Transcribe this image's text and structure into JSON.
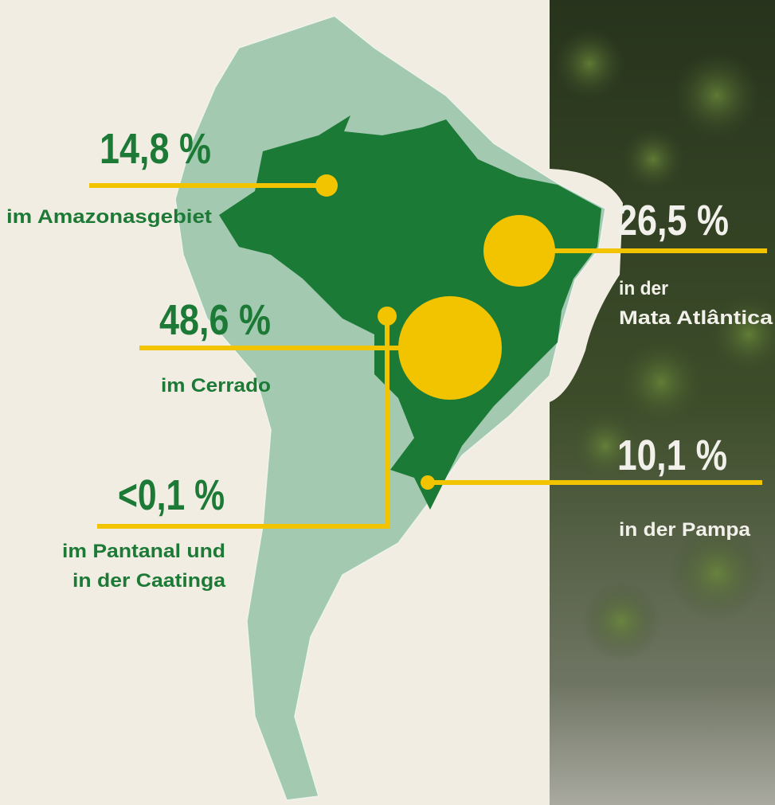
{
  "callouts": [
    {
      "value": "14,8 %",
      "label": "im Amazonasgebiet"
    },
    {
      "value": "48,6 %",
      "label": "im Cerrado"
    },
    {
      "value": "<0,1 %",
      "label": [
        "im Pantanal und",
        "in der Caatinga"
      ]
    },
    {
      "value": "26,5 %",
      "label": [
        "in der",
        "Mata Atlântica"
      ]
    },
    {
      "value": "10,1 %",
      "label": "in der Pampa"
    }
  ]
}
